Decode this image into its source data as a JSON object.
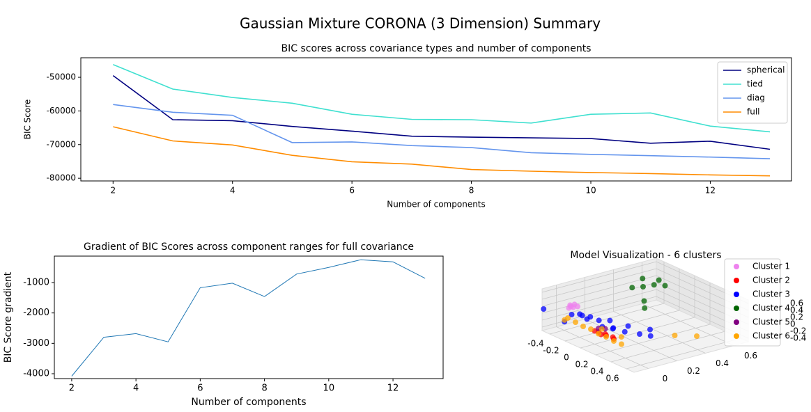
{
  "title": "Gaussian Mixture CORONA (3 Dimension) Summary",
  "chart_data": [
    {
      "type": "line",
      "title": "BIC scores across covariance types and number of components",
      "xlabel": "Number of components",
      "ylabel": "BIC Score",
      "x": [
        2,
        3,
        4,
        5,
        6,
        7,
        8,
        9,
        10,
        11,
        12,
        13
      ],
      "series": [
        {
          "name": "spherical",
          "color": "#000080",
          "values": [
            -49500,
            -62600,
            -62900,
            -64600,
            -66000,
            -67500,
            -67800,
            -68000,
            -68200,
            -69600,
            -69000,
            -71400
          ]
        },
        {
          "name": "tied",
          "color": "#40e0d0",
          "values": [
            -46200,
            -53500,
            -56000,
            -57700,
            -61000,
            -62500,
            -62600,
            -63600,
            -61000,
            -60600,
            -64500,
            -66200
          ]
        },
        {
          "name": "diag",
          "color": "#6495ed",
          "values": [
            -58100,
            -60400,
            -61300,
            -69400,
            -69200,
            -70300,
            -70900,
            -72400,
            -72900,
            -73300,
            -73700,
            -74200
          ]
        },
        {
          "name": "full",
          "color": "#ff8c00",
          "values": [
            -64700,
            -68900,
            -70100,
            -73200,
            -75100,
            -75800,
            -77400,
            -77900,
            -78300,
            -78600,
            -79000,
            -79300
          ]
        }
      ],
      "xlim": [
        1.46,
        13.36
      ],
      "xticks": [
        2,
        4,
        6,
        8,
        10,
        12
      ],
      "ylim": [
        -80800,
        -44200
      ],
      "yticks": [
        -80000,
        -70000,
        -60000,
        -50000
      ],
      "legend": "upper right"
    },
    {
      "type": "line",
      "title": "Gradient of BIC Scores across component ranges for full covariance",
      "xlabel": "Number of components",
      "ylabel": "BIC Score gradient",
      "x": [
        2,
        3,
        4,
        5,
        6,
        7,
        8,
        9,
        10,
        11,
        12,
        13
      ],
      "series": [
        {
          "color": "#1f77b4",
          "values": [
            -4080,
            -2800,
            -2680,
            -2950,
            -1170,
            -1020,
            -1460,
            -720,
            -500,
            -250,
            -320,
            -860
          ]
        }
      ],
      "xlim": [
        1.46,
        13.56
      ],
      "xticks": [
        2,
        4,
        6,
        8,
        10,
        12
      ],
      "ylim": [
        -4160,
        -130
      ],
      "yticks": [
        -4000,
        -3000,
        -2000,
        -1000
      ]
    },
    {
      "type": "scatter3d",
      "title": "Model Visualization - 6 clusters",
      "series": [
        {
          "name": "Cluster 1",
          "color": "#ee82ee",
          "x": [
            -0.32,
            -0.3,
            -0.28,
            -0.3,
            -0.26,
            -0.33
          ],
          "y": [
            0,
            0.02,
            0,
            -0.02,
            0.02,
            0.01
          ],
          "z": [
            0.3,
            0.32,
            0.28,
            0.26,
            0.3,
            0.24
          ]
        },
        {
          "name": "Cluster 2",
          "color": "#ff0000",
          "x": [
            0.0,
            0.05,
            0.1,
            0.15,
            0.2,
            0.25,
            0.12
          ],
          "y": [
            0,
            0,
            0.02,
            0,
            0.02,
            0,
            -0.02
          ],
          "z": [
            -0.12,
            -0.1,
            -0.13,
            -0.1,
            -0.12,
            -0.1,
            -0.08
          ]
        },
        {
          "name": "Cluster 3",
          "color": "#0000ff",
          "x": [
            -0.48,
            -0.3,
            -0.2,
            -0.1,
            0,
            0.1,
            0.2,
            0.3,
            0.4,
            -0.15,
            0.05,
            0.25,
            0.35,
            -0.25,
            0.15,
            0.45,
            -0.3
          ],
          "y": [
            -0.1,
            0,
            0.02,
            0,
            0.03,
            0,
            0.02,
            0.05,
            0.1,
            0.05,
            0.08,
            0.1,
            0.2,
            0.03,
            0.05,
            0.15,
            -0.05
          ],
          "z": [
            0.14,
            0.05,
            0.1,
            0.12,
            0.15,
            0.1,
            0.12,
            0.1,
            0.08,
            0.08,
            0.14,
            0.16,
            0.05,
            0.08,
            0.06,
            0.02,
            -0.1
          ]
        },
        {
          "name": "Cluster 4",
          "color": "#006400",
          "x": [
            -0.3,
            -0.25,
            -0.2,
            -0.35,
            -0.4,
            -0.1,
            0.0,
            -0.28
          ],
          "y": [
            0.5,
            0.55,
            0.6,
            0.45,
            0.55,
            0.4,
            0.35,
            0.6
          ],
          "z": [
            0.3,
            0.35,
            0.32,
            0.28,
            0.38,
            0.2,
            0.15,
            0.4
          ]
        },
        {
          "name": "Cluster 5",
          "color": "#800080",
          "x": [
            0.05,
            0.1
          ],
          "y": [
            0.0,
            0.02
          ],
          "z": [
            0.0,
            0.02
          ]
        },
        {
          "name": "Cluster 6",
          "color": "#ffa500",
          "x": [
            -0.35,
            -0.25,
            -0.15,
            -0.05,
            0.05,
            0.15,
            0.25,
            0.35,
            0.3,
            0.4,
            -0.3,
            0.0,
            0.2
          ],
          "y": [
            0,
            0,
            0,
            0,
            0,
            0,
            0,
            0,
            0.4,
            0.5,
            -0.05,
            0.05,
            0.08
          ],
          "z": [
            -0.1,
            -0.12,
            -0.14,
            -0.12,
            -0.15,
            -0.14,
            -0.16,
            -0.15,
            -0.39,
            -0.42,
            -0.05,
            -0.12,
            -0.18
          ]
        }
      ],
      "xlim": [
        -0.5,
        0.7
      ],
      "xticks": [
        -0.4,
        -0.2,
        0.0,
        0.2,
        0.4,
        0.6
      ],
      "ylim": [
        -0.1,
        0.7
      ],
      "yticks": [
        0.0,
        0.2,
        0.4,
        0.6
      ],
      "zlim": [
        -0.5,
        0.7
      ],
      "zticks": [
        -0.4,
        -0.2,
        0.0,
        0.2,
        0.4,
        0.6
      ]
    }
  ]
}
